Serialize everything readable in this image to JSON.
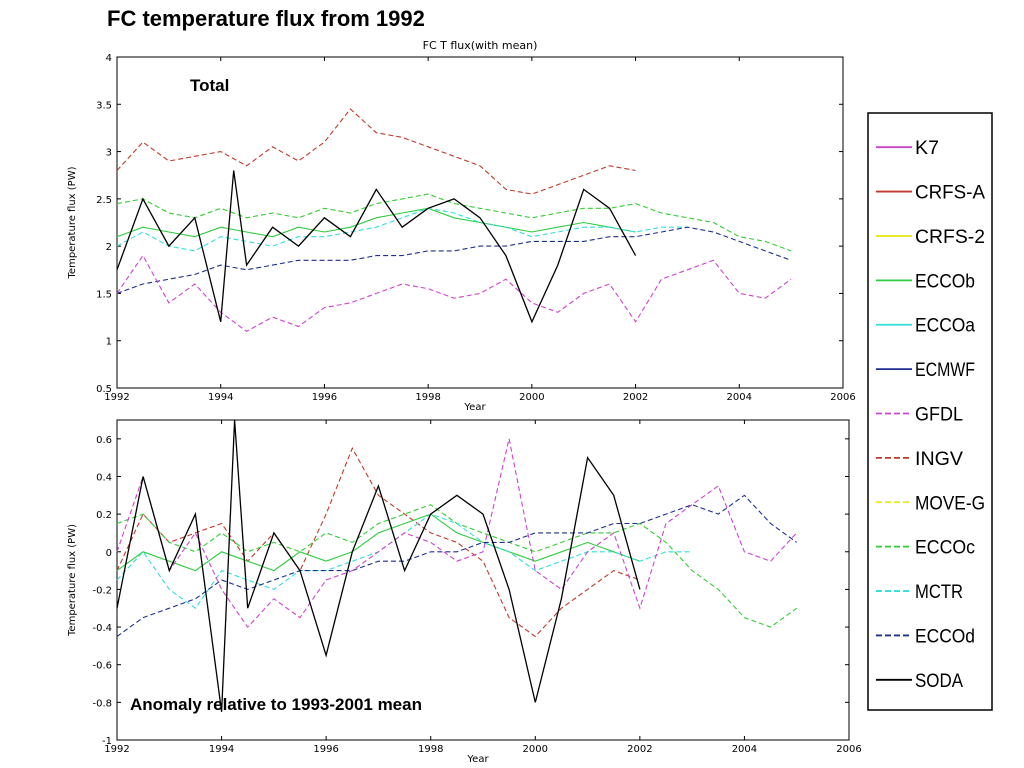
{
  "slide": {
    "title": "FC temperature flux from 1992"
  },
  "chart_data": [
    {
      "type": "line",
      "title": "FC T flux(with mean)",
      "annotation": "Total",
      "xlabel": "Year",
      "ylabel": "Temperature flux (PW)",
      "xlim": [
        1992,
        2006
      ],
      "ylim": [
        0.5,
        4
      ],
      "xticks": [
        "1992",
        "1994",
        "1996",
        "1998",
        "2000",
        "2002",
        "2004",
        "2006"
      ],
      "yticks": [
        "0.5",
        "1",
        "1.5",
        "2",
        "2.5",
        "3",
        "3.5",
        "4"
      ],
      "series": [
        {
          "name": "INGV",
          "color": "#c0392b",
          "dash": true,
          "x": [
            1992,
            1992.5,
            1993,
            1993.5,
            1994,
            1994.5,
            1995,
            1995.5,
            1996,
            1996.5,
            1997,
            1997.5,
            1998,
            1998.5,
            1999,
            1999.5,
            2000,
            2000.5,
            2001,
            2001.5,
            2002
          ],
          "y": [
            2.8,
            3.1,
            2.9,
            2.95,
            3.0,
            2.85,
            3.05,
            2.9,
            3.1,
            3.45,
            3.2,
            3.15,
            3.05,
            2.95,
            2.85,
            2.6,
            2.55,
            2.65,
            2.75,
            2.85,
            2.8
          ]
        },
        {
          "name": "ECCOc",
          "color": "#33cc33",
          "dash": true,
          "x": [
            1992,
            1992.5,
            1993,
            1993.5,
            1994,
            1994.5,
            1995,
            1995.5,
            1996,
            1996.5,
            1997,
            1997.5,
            1998,
            1998.5,
            1999,
            1999.5,
            2000,
            2000.5,
            2001,
            2001.5,
            2002,
            2002.5,
            2003,
            2003.5,
            2004,
            2004.5,
            2005
          ],
          "y": [
            2.45,
            2.5,
            2.35,
            2.3,
            2.4,
            2.3,
            2.35,
            2.3,
            2.4,
            2.35,
            2.45,
            2.5,
            2.55,
            2.45,
            2.4,
            2.35,
            2.3,
            2.35,
            2.4,
            2.4,
            2.45,
            2.35,
            2.3,
            2.25,
            2.1,
            2.05,
            1.95
          ]
        },
        {
          "name": "ECCOb",
          "color": "#2ecc40",
          "dash": false,
          "x": [
            1992,
            1992.5,
            1993,
            1993.5,
            1994,
            1994.5,
            1995,
            1995.5,
            1996,
            1996.5,
            1997,
            1997.5,
            1998,
            1998.5,
            1999,
            1999.5,
            2000,
            2000.5,
            2001,
            2001.5,
            2002
          ],
          "y": [
            2.1,
            2.2,
            2.15,
            2.1,
            2.2,
            2.15,
            2.1,
            2.2,
            2.15,
            2.2,
            2.3,
            2.35,
            2.4,
            2.3,
            2.25,
            2.2,
            2.15,
            2.2,
            2.25,
            2.2,
            2.15
          ]
        },
        {
          "name": "MCTR",
          "color": "#33dddd",
          "dash": true,
          "x": [
            1992,
            1992.5,
            1993,
            1993.5,
            1994,
            1994.5,
            1995,
            1995.5,
            1996,
            1996.5,
            1997,
            1997.5,
            1998,
            1998.5,
            1999,
            1999.5,
            2000,
            2000.5,
            2001,
            2001.5,
            2002,
            2002.5,
            2003
          ],
          "y": [
            2.0,
            2.15,
            2.0,
            1.95,
            2.1,
            2.05,
            2.0,
            2.1,
            2.1,
            2.15,
            2.2,
            2.3,
            2.4,
            2.35,
            2.25,
            2.2,
            2.1,
            2.15,
            2.2,
            2.2,
            2.15,
            2.2,
            2.2
          ]
        },
        {
          "name": "ECCOd",
          "color": "#1f2f8f",
          "dash": true,
          "x": [
            1992,
            1992.5,
            1993,
            1993.5,
            1994,
            1994.5,
            1995,
            1995.5,
            1996,
            1996.5,
            1997,
            1997.5,
            1998,
            1998.5,
            1999,
            1999.5,
            2000,
            2000.5,
            2001,
            2001.5,
            2002,
            2002.5,
            2003,
            2003.5,
            2004,
            2004.5,
            2005
          ],
          "y": [
            1.5,
            1.6,
            1.65,
            1.7,
            1.8,
            1.75,
            1.8,
            1.85,
            1.85,
            1.85,
            1.9,
            1.9,
            1.95,
            1.95,
            2.0,
            2.0,
            2.05,
            2.05,
            2.05,
            2.1,
            2.1,
            2.15,
            2.2,
            2.15,
            2.05,
            1.95,
            1.85
          ]
        },
        {
          "name": "GFDL",
          "color": "#cc44cc",
          "dash": true,
          "x": [
            1992,
            1992.5,
            1993,
            1993.5,
            1994,
            1994.5,
            1995,
            1995.5,
            1996,
            1996.5,
            1997,
            1997.5,
            1998,
            1998.5,
            1999,
            1999.5,
            2000,
            2000.5,
            2001,
            2001.5,
            2002,
            2002.5,
            2003,
            2003.5,
            2004,
            2004.5,
            2005
          ],
          "y": [
            1.5,
            1.9,
            1.4,
            1.6,
            1.3,
            1.1,
            1.25,
            1.15,
            1.35,
            1.4,
            1.5,
            1.6,
            1.55,
            1.45,
            1.5,
            1.65,
            1.4,
            1.3,
            1.5,
            1.6,
            1.2,
            1.65,
            1.75,
            1.85,
            1.5,
            1.45,
            1.65
          ]
        },
        {
          "name": "SODA",
          "color": "#000000",
          "dash": false,
          "x": [
            1992,
            1992.5,
            1993,
            1993.5,
            1994,
            1994.25,
            1994.5,
            1995,
            1995.5,
            1996,
            1996.5,
            1997,
            1997.5,
            1998,
            1998.5,
            1999,
            1999.5,
            2000,
            2000.5,
            2001,
            2001.5,
            2002
          ],
          "y": [
            1.75,
            2.5,
            2.0,
            2.3,
            1.2,
            2.8,
            1.8,
            2.2,
            2.0,
            2.3,
            2.1,
            2.6,
            2.2,
            2.4,
            2.5,
            2.3,
            1.9,
            1.2,
            1.8,
            2.6,
            2.4,
            1.9
          ]
        }
      ]
    },
    {
      "type": "line",
      "annotation": "Anomaly relative to 1993-2001 mean",
      "xlabel": "Year",
      "ylabel": "Temperature flux (PW)",
      "xlim": [
        1992,
        2006
      ],
      "ylim": [
        -1,
        0.7
      ],
      "xticks": [
        "1992",
        "1994",
        "1996",
        "1998",
        "2000",
        "2002",
        "2004",
        "2006"
      ],
      "yticks": [
        "-1",
        "-0.8",
        "-0.6",
        "-0.4",
        "-0.2",
        "0",
        "0.2",
        "0.4",
        "0.6"
      ],
      "series": [
        {
          "name": "INGV",
          "color": "#c0392b",
          "dash": true,
          "x": [
            1992,
            1992.5,
            1993,
            1993.5,
            1994,
            1994.5,
            1995,
            1995.5,
            1996,
            1996.5,
            1997,
            1997.5,
            1998,
            1998.5,
            1999,
            1999.5,
            2000,
            2000.5,
            2001,
            2001.5,
            2002
          ],
          "y": [
            -0.1,
            0.2,
            0.05,
            0.1,
            0.15,
            -0.05,
            0.1,
            -0.1,
            0.2,
            0.55,
            0.3,
            0.2,
            0.1,
            0.05,
            -0.05,
            -0.35,
            -0.45,
            -0.3,
            -0.2,
            -0.1,
            -0.15
          ]
        },
        {
          "name": "ECCOc",
          "color": "#33cc33",
          "dash": true,
          "x": [
            1992,
            1992.5,
            1993,
            1993.5,
            1994,
            1994.5,
            1995,
            1995.5,
            1996,
            1996.5,
            1997,
            1997.5,
            1998,
            1998.5,
            1999,
            1999.5,
            2000,
            2000.5,
            2001,
            2001.5,
            2002,
            2002.5,
            2003,
            2003.5,
            2004,
            2004.5,
            2005
          ],
          "y": [
            0.15,
            0.2,
            0.05,
            0.0,
            0.1,
            0.0,
            0.05,
            0.0,
            0.1,
            0.05,
            0.15,
            0.2,
            0.25,
            0.15,
            0.1,
            0.05,
            0.0,
            0.05,
            0.1,
            0.1,
            0.15,
            0.05,
            -0.1,
            -0.2,
            -0.35,
            -0.4,
            -0.3
          ]
        },
        {
          "name": "ECCOb",
          "color": "#2ecc40",
          "dash": false,
          "x": [
            1992,
            1992.5,
            1993,
            1993.5,
            1994,
            1994.5,
            1995,
            1995.5,
            1996,
            1996.5,
            1997,
            1997.5,
            1998,
            1998.5,
            1999,
            1999.5,
            2000,
            2000.5,
            2001,
            2001.5,
            2002
          ],
          "y": [
            -0.1,
            0.0,
            -0.05,
            -0.1,
            0.0,
            -0.05,
            -0.1,
            0.0,
            -0.05,
            0.0,
            0.1,
            0.15,
            0.2,
            0.1,
            0.05,
            0.0,
            -0.05,
            0.0,
            0.05,
            0.0,
            -0.05
          ]
        },
        {
          "name": "MCTR",
          "color": "#33dddd",
          "dash": true,
          "x": [
            1992,
            1992.5,
            1993,
            1993.5,
            1994,
            1994.5,
            1995,
            1995.5,
            1996,
            1996.5,
            1997,
            1997.5,
            1998,
            1998.5,
            1999,
            1999.5,
            2000,
            2000.5,
            2001,
            2001.5,
            2002,
            2002.5,
            2003
          ],
          "y": [
            -0.15,
            0.0,
            -0.2,
            -0.3,
            -0.1,
            -0.15,
            -0.2,
            -0.1,
            -0.1,
            -0.05,
            0.0,
            0.1,
            0.2,
            0.15,
            0.05,
            0.0,
            -0.1,
            -0.05,
            0.0,
            0.0,
            -0.05,
            0.0,
            0.0
          ]
        },
        {
          "name": "ECCOd",
          "color": "#1f2f8f",
          "dash": true,
          "x": [
            1992,
            1992.5,
            1993,
            1993.5,
            1994,
            1994.5,
            1995,
            1995.5,
            1996,
            1996.5,
            1997,
            1997.5,
            1998,
            1998.5,
            1999,
            1999.5,
            2000,
            2000.5,
            2001,
            2001.5,
            2002,
            2002.5,
            2003,
            2003.5,
            2004,
            2004.5,
            2005
          ],
          "y": [
            -0.45,
            -0.35,
            -0.3,
            -0.25,
            -0.15,
            -0.2,
            -0.15,
            -0.1,
            -0.1,
            -0.1,
            -0.05,
            -0.05,
            0.0,
            0.0,
            0.05,
            0.05,
            0.1,
            0.1,
            0.1,
            0.15,
            0.15,
            0.2,
            0.25,
            0.2,
            0.3,
            0.15,
            0.05
          ]
        },
        {
          "name": "GFDL",
          "color": "#cc44cc",
          "dash": true,
          "x": [
            1992,
            1992.5,
            1993,
            1993.5,
            1994,
            1994.5,
            1995,
            1995.5,
            1996,
            1996.5,
            1997,
            1997.5,
            1998,
            1998.5,
            1999,
            1999.5,
            2000,
            2000.5,
            2001,
            2001.5,
            2002,
            2002.5,
            2003,
            2003.5,
            2004,
            2004.5,
            2005
          ],
          "y": [
            0.0,
            0.4,
            -0.1,
            0.1,
            -0.2,
            -0.4,
            -0.25,
            -0.35,
            -0.15,
            -0.1,
            0.0,
            0.1,
            0.05,
            -0.05,
            0.0,
            0.6,
            -0.1,
            -0.2,
            0.0,
            0.1,
            -0.3,
            0.15,
            0.25,
            0.35,
            0.0,
            -0.05,
            0.1
          ]
        },
        {
          "name": "SODA",
          "color": "#000000",
          "dash": false,
          "x": [
            1992,
            1992.5,
            1993,
            1993.5,
            1994,
            1994.25,
            1994.5,
            1995,
            1995.5,
            1996,
            1996.5,
            1997,
            1997.5,
            1998,
            1998.5,
            1999,
            1999.5,
            2000,
            2000.5,
            2001,
            2001.5,
            2002
          ],
          "y": [
            -0.3,
            0.4,
            -0.1,
            0.2,
            -0.85,
            0.7,
            -0.3,
            0.1,
            -0.1,
            -0.55,
            0.0,
            0.35,
            -0.1,
            0.2,
            0.3,
            0.2,
            -0.2,
            -0.8,
            -0.25,
            0.5,
            0.3,
            -0.2
          ]
        }
      ]
    }
  ],
  "legend": {
    "placement": "right",
    "items": [
      {
        "name": "K7",
        "color": "#cc44cc",
        "dash": false
      },
      {
        "name": "CRFS-A",
        "color": "#c0392b",
        "dash": false
      },
      {
        "name": "CRFS-2",
        "color": "#e8e81a",
        "dash": false
      },
      {
        "name": "ECCOb",
        "color": "#2ecc40",
        "dash": false
      },
      {
        "name": "ECCOa",
        "color": "#33dddd",
        "dash": false
      },
      {
        "name": "ECMWF",
        "color": "#1f2f8f",
        "dash": false
      },
      {
        "name": "GFDL",
        "color": "#cc44cc",
        "dash": true
      },
      {
        "name": "INGV",
        "color": "#c0392b",
        "dash": true
      },
      {
        "name": "MOVE-G",
        "color": "#e8e81a",
        "dash": true
      },
      {
        "name": "ECCOc",
        "color": "#33cc33",
        "dash": true
      },
      {
        "name": "MCTR",
        "color": "#33dddd",
        "dash": true
      },
      {
        "name": "ECCOd",
        "color": "#1f2f8f",
        "dash": true
      },
      {
        "name": "SODA",
        "color": "#000000",
        "dash": false
      }
    ]
  }
}
